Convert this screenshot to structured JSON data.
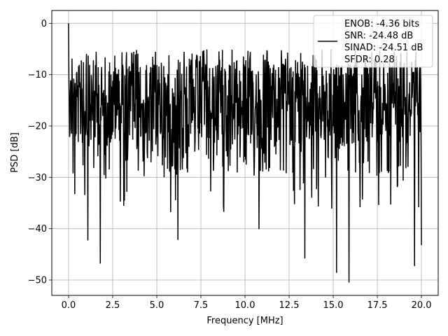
{
  "chart_data": {
    "type": "line",
    "title": "",
    "xlabel": "Frequency [MHz]",
    "ylabel": "PSD [dB]",
    "xlim": [
      -0.95,
      20.95
    ],
    "ylim": [
      -53,
      2.5
    ],
    "x_ticks": [
      0.0,
      2.5,
      5.0,
      7.5,
      10.0,
      12.5,
      15.0,
      17.5,
      20.0
    ],
    "x_tick_labels": [
      "0.0",
      "2.5",
      "5.0",
      "7.5",
      "10.0",
      "12.5",
      "15.0",
      "17.5",
      "20.0"
    ],
    "y_ticks": [
      0,
      -10,
      -20,
      -30,
      -40,
      -50
    ],
    "y_tick_labels": [
      "0",
      "−10",
      "−20",
      "−30",
      "−40",
      "−50"
    ],
    "grid": true,
    "legend_position": "top-right",
    "series": [
      {
        "name": "ENOB: -4.36 bits\nSNR: -24.48 dB\nSINAD: -24.51 dB\nSFDR: 0.28",
        "color": "#000000",
        "x_range": [
          0,
          20
        ],
        "points": 1024,
        "start_value": 0,
        "typical_range": [
          -28,
          -5
        ],
        "peak_level": -4.2,
        "notable_minima": [
          {
            "x": 1.1,
            "y": -42.3
          },
          {
            "x": 1.8,
            "y": -46.8
          },
          {
            "x": 6.2,
            "y": -42.2
          },
          {
            "x": 10.8,
            "y": -40.1
          },
          {
            "x": 13.4,
            "y": -45.8
          },
          {
            "x": 15.2,
            "y": -48.6
          },
          {
            "x": 15.9,
            "y": -50.5
          },
          {
            "x": 19.6,
            "y": -47.3
          },
          {
            "x": 20.0,
            "y": -43.2
          }
        ]
      }
    ]
  },
  "legend": {
    "lines": [
      "ENOB: -4.36 bits",
      "SNR: -24.48 dB",
      "SINAD: -24.51 dB",
      "SFDR: 0.28"
    ]
  }
}
